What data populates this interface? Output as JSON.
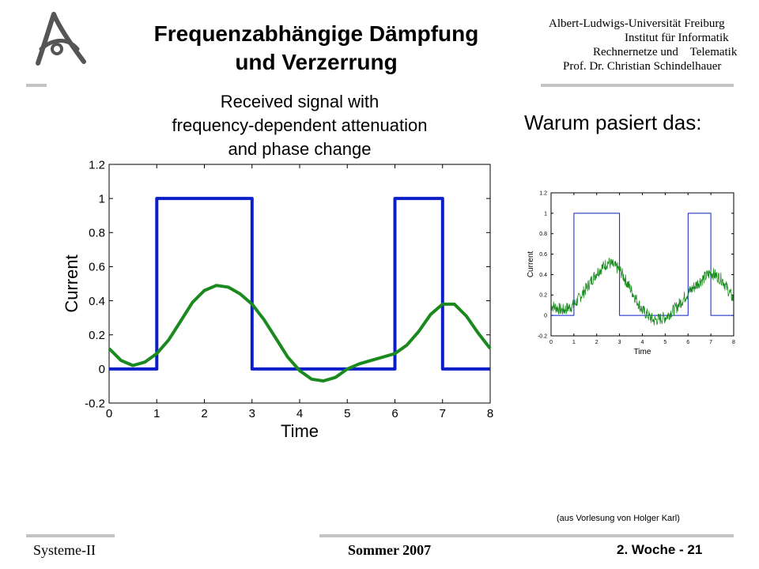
{
  "header": {
    "title_line1": "Frequenzabhängige Dämpfung",
    "title_line2": "und Verzerrung",
    "institution": [
      "Albert-Ludwigs-Universität Freiburg",
      "Institut für Informatik",
      "Rechnernetze und    Telematik",
      "Prof. Dr. Christian Schindelhauer"
    ]
  },
  "question": "Warum pasiert das:",
  "credit": "(aus Vorlesung von Holger Karl)",
  "footer": {
    "left": "Systeme-II",
    "center": "Sommer 2007",
    "right": "2. Woche  - 21"
  },
  "colors": {
    "square_wave": "#0b1fc8",
    "received_signal": "#1a8a1f",
    "rule": "#c4c4c4"
  },
  "chart_data": [
    {
      "type": "line",
      "title": [
        "Received signal with",
        "frequency-dependent attenuation",
        "and phase change"
      ],
      "xlabel": "Time",
      "ylabel": "Current",
      "xlim": [
        0,
        8
      ],
      "ylim": [
        -0.2,
        1.2
      ],
      "xticks": [
        "0",
        "1",
        "2",
        "3",
        "4",
        "5",
        "6",
        "7",
        "8"
      ],
      "yticks": [
        "-0.2",
        "0",
        "0.2",
        "0.4",
        "0.6",
        "0.8",
        "1",
        "1.2"
      ],
      "grid": false,
      "series": [
        {
          "color": "blue",
          "x": [
            0,
            1,
            1,
            3,
            3,
            6,
            6,
            7,
            7,
            8
          ],
          "y": [
            0,
            0,
            1,
            1,
            0,
            0,
            1,
            1,
            0,
            0
          ]
        },
        {
          "color": "green",
          "x": [
            0,
            0.25,
            0.5,
            0.75,
            1.0,
            1.25,
            1.5,
            1.75,
            2.0,
            2.25,
            2.5,
            2.75,
            3.0,
            3.25,
            3.5,
            3.75,
            4.0,
            4.25,
            4.5,
            4.75,
            5.0,
            5.25,
            5.5,
            5.75,
            6.0,
            6.25,
            6.5,
            6.75,
            7.0,
            7.25,
            7.5,
            7.75,
            8.0
          ],
          "y": [
            0.12,
            0.05,
            0.02,
            0.04,
            0.09,
            0.17,
            0.28,
            0.39,
            0.46,
            0.49,
            0.48,
            0.44,
            0.38,
            0.29,
            0.18,
            0.07,
            -0.01,
            -0.06,
            -0.07,
            -0.05,
            0.0,
            0.03,
            0.05,
            0.07,
            0.09,
            0.14,
            0.22,
            0.32,
            0.38,
            0.38,
            0.31,
            0.21,
            0.12
          ]
        }
      ]
    },
    {
      "type": "line",
      "title": [],
      "xlabel": "Time",
      "ylabel": "Current",
      "xlim": [
        0,
        8
      ],
      "ylim": [
        -0.2,
        1.2
      ],
      "xticks": [
        "0",
        "1",
        "2",
        "3",
        "4",
        "5",
        "6",
        "7",
        "8"
      ],
      "yticks": [
        "-0.2",
        "0",
        "0.2",
        "0.4",
        "0.6",
        "0.8",
        "1",
        "1.2"
      ],
      "grid": false,
      "series": [
        {
          "color": "blue",
          "x": [
            0,
            1,
            1,
            3,
            3,
            6,
            6,
            7,
            7,
            8
          ],
          "y": [
            0,
            0,
            1,
            1,
            0,
            0,
            1,
            1,
            0,
            0
          ]
        },
        {
          "color": "green",
          "noisy": true,
          "x": [
            0,
            0.5,
            1.0,
            1.5,
            2.0,
            2.5,
            3.0,
            3.5,
            4.0,
            4.5,
            5.0,
            5.5,
            6.0,
            6.5,
            7.0,
            7.5,
            8.0
          ],
          "y": [
            0.1,
            0.05,
            0.1,
            0.25,
            0.42,
            0.52,
            0.45,
            0.25,
            0.05,
            -0.05,
            -0.02,
            0.08,
            0.22,
            0.33,
            0.42,
            0.35,
            0.15
          ]
        }
      ]
    }
  ]
}
